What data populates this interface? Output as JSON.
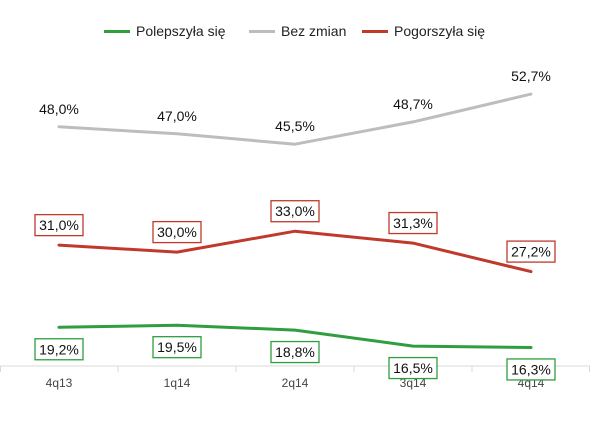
{
  "chart_data": {
    "type": "line",
    "categories": [
      "4q13",
      "1q14",
      "2q14",
      "3q14",
      "4q14"
    ],
    "series": [
      {
        "name": "Polepszyła się",
        "color": "#2e9e3e",
        "values": [
          19.2,
          19.5,
          18.8,
          16.5,
          16.3
        ],
        "labels": [
          "19,2%",
          "19,5%",
          "18,8%",
          "16,5%",
          "16,3%"
        ],
        "boxed": true
      },
      {
        "name": "Bez zmian",
        "color": "#bdbdbd",
        "values": [
          48.0,
          47.0,
          45.5,
          48.7,
          52.7
        ],
        "labels": [
          "48,0%",
          "47,0%",
          "45,5%",
          "48,7%",
          "52,7%"
        ],
        "boxed": false
      },
      {
        "name": "Pogorszyła się",
        "color": "#c0392b",
        "values": [
          31.0,
          30.0,
          33.0,
          31.3,
          27.2
        ],
        "labels": [
          "31,0%",
          "30,0%",
          "33,0%",
          "31,3%",
          "27,2%"
        ],
        "boxed": true
      }
    ],
    "legend_position": "top",
    "grid": false
  }
}
